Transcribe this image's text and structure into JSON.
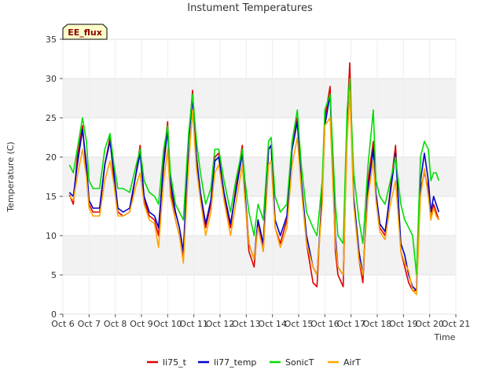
{
  "chart_data": {
    "type": "line",
    "title": "Instument Temperatures",
    "xlabel": "Time",
    "ylabel": "Temperature (C)",
    "badge": "EE_flux",
    "xlim": [
      6,
      21
    ],
    "ylim": [
      0,
      35
    ],
    "yticks": [
      0,
      5,
      10,
      15,
      20,
      25,
      30,
      35
    ],
    "xticks": [
      {
        "v": 6,
        "label": "Oct 6"
      },
      {
        "v": 7,
        "label": "Oct 7"
      },
      {
        "v": 8,
        "label": "Oct 8"
      },
      {
        "v": 9,
        "label": "Oct 9"
      },
      {
        "v": 10,
        "label": "Oct 10"
      },
      {
        "v": 11,
        "label": "Oct 11"
      },
      {
        "v": 12,
        "label": "Oct 12"
      },
      {
        "v": 13,
        "label": "Oct 13"
      },
      {
        "v": 14,
        "label": "Oct 14"
      },
      {
        "v": 15,
        "label": "Oct 15"
      },
      {
        "v": 16,
        "label": "Oct 16"
      },
      {
        "v": 17,
        "label": "Oct 17"
      },
      {
        "v": 18,
        "label": "Oct 18"
      },
      {
        "v": 19,
        "label": "Oct 19"
      },
      {
        "v": 20,
        "label": "Oct 20"
      },
      {
        "v": 21,
        "label": "Oct 21"
      }
    ],
    "legend_position": "bottom",
    "series": [
      {
        "name": "li75_t",
        "color": "#e00000",
        "x": [
          6.25,
          6.4,
          6.55,
          6.75,
          6.9,
          7.0,
          7.15,
          7.4,
          7.6,
          7.8,
          7.95,
          8.1,
          8.3,
          8.55,
          8.8,
          8.95,
          9.1,
          9.3,
          9.5,
          9.65,
          9.85,
          10.0,
          10.1,
          10.3,
          10.45,
          10.6,
          10.8,
          10.95,
          11.1,
          11.25,
          11.45,
          11.65,
          11.8,
          11.95,
          12.15,
          12.4,
          12.6,
          12.85,
          12.95,
          13.1,
          13.3,
          13.45,
          13.65,
          13.85,
          13.95,
          14.1,
          14.3,
          14.55,
          14.75,
          14.95,
          15.1,
          15.3,
          15.55,
          15.7,
          15.9,
          16.0,
          16.2,
          16.4,
          16.5,
          16.7,
          16.85,
          16.95,
          17.1,
          17.3,
          17.45,
          17.65,
          17.85,
          17.95,
          18.1,
          18.3,
          18.5,
          18.7,
          18.9,
          19.05,
          19.2,
          19.35,
          19.5,
          19.65,
          19.8,
          19.95,
          20.05,
          20.15,
          20.25,
          20.35
        ],
        "y": [
          15.2,
          14,
          20,
          24,
          18,
          14,
          13,
          13,
          19,
          22.5,
          17,
          13,
          12.5,
          13,
          18,
          21.5,
          14.5,
          12.5,
          12,
          10,
          20,
          24.5,
          16,
          12,
          10,
          7,
          22,
          28.5,
          20,
          15,
          11,
          14,
          20,
          20.5,
          15,
          11,
          16,
          21.5,
          15,
          8,
          6,
          12,
          8,
          21,
          21.5,
          11,
          9,
          12,
          22,
          25,
          17,
          9,
          4,
          3.5,
          16,
          25,
          29,
          8,
          5,
          3.5,
          25,
          32,
          15,
          7,
          4,
          17,
          22,
          15,
          11,
          10,
          16,
          21.5,
          8,
          6,
          4,
          3,
          3,
          16,
          18,
          16,
          12,
          14,
          13,
          12
        ]
      },
      {
        "name": "li77_temp",
        "color": "#0000cc",
        "x": [
          6.25,
          6.4,
          6.55,
          6.75,
          6.9,
          7.0,
          7.15,
          7.4,
          7.6,
          7.8,
          7.95,
          8.1,
          8.3,
          8.55,
          8.8,
          8.95,
          9.1,
          9.3,
          9.5,
          9.65,
          9.85,
          10.0,
          10.1,
          10.3,
          10.45,
          10.6,
          10.8,
          10.95,
          11.1,
          11.25,
          11.45,
          11.65,
          11.8,
          11.95,
          12.15,
          12.4,
          12.6,
          12.85,
          12.95,
          13.1,
          13.3,
          13.45,
          13.65,
          13.85,
          13.95,
          14.1,
          14.3,
          14.55,
          14.75,
          14.95,
          15.1,
          15.3,
          15.55,
          15.7,
          15.9,
          16.0,
          16.2,
          16.4,
          16.5,
          16.7,
          16.85,
          16.95,
          17.1,
          17.3,
          17.45,
          17.65,
          17.85,
          17.95,
          18.1,
          18.3,
          18.5,
          18.7,
          18.9,
          19.05,
          19.2,
          19.35,
          19.5,
          19.65,
          19.8,
          19.95,
          20.05,
          20.15,
          20.25,
          20.35
        ],
        "y": [
          15.5,
          15,
          19,
          23.5,
          19,
          14.5,
          13.5,
          13.5,
          19,
          22,
          18,
          13.5,
          13,
          13.5,
          18,
          20.5,
          15,
          13,
          12.5,
          11,
          19,
          23.5,
          17,
          13,
          11,
          8,
          22,
          27.5,
          20,
          15.5,
          11.5,
          14.5,
          19.5,
          20,
          15.5,
          11.5,
          15.5,
          20.5,
          15.5,
          9,
          7,
          12,
          9,
          21,
          21.5,
          12,
          10,
          12.5,
          21,
          24.5,
          17,
          10,
          6,
          5,
          15,
          24,
          28,
          10,
          6,
          5,
          24,
          29.5,
          15,
          8,
          5,
          16,
          21,
          15.5,
          11.5,
          10.5,
          15.5,
          20.5,
          9,
          7.5,
          5,
          3.5,
          3,
          17,
          20.5,
          17,
          13,
          15,
          14,
          13
        ]
      },
      {
        "name": "SonicT",
        "color": "#00dd00",
        "x": [
          6.25,
          6.4,
          6.55,
          6.75,
          6.9,
          7.0,
          7.15,
          7.4,
          7.6,
          7.8,
          7.95,
          8.1,
          8.3,
          8.55,
          8.8,
          8.95,
          9.1,
          9.3,
          9.5,
          9.65,
          9.85,
          10.0,
          10.1,
          10.3,
          10.45,
          10.6,
          10.8,
          10.95,
          11.1,
          11.25,
          11.45,
          11.65,
          11.8,
          11.95,
          12.15,
          12.4,
          12.6,
          12.85,
          12.95,
          13.1,
          13.3,
          13.45,
          13.65,
          13.85,
          13.95,
          14.1,
          14.3,
          14.55,
          14.75,
          14.95,
          15.1,
          15.3,
          15.55,
          15.7,
          15.9,
          16.0,
          16.2,
          16.4,
          16.5,
          16.7,
          16.85,
          16.95,
          17.1,
          17.3,
          17.45,
          17.65,
          17.85,
          17.95,
          18.1,
          18.3,
          18.5,
          18.7,
          18.9,
          19.05,
          19.2,
          19.35,
          19.5,
          19.65,
          19.8,
          19.95,
          20.05,
          20.15,
          20.25,
          20.35
        ],
        "y": [
          19,
          18,
          21,
          25,
          22,
          17,
          16,
          16,
          21,
          23,
          19,
          16,
          16,
          15.5,
          19,
          21,
          17,
          15.5,
          15,
          14,
          21,
          24,
          18,
          14,
          13,
          12,
          23,
          28,
          22,
          18,
          14,
          16,
          21,
          21,
          17,
          13,
          17,
          21,
          17,
          13,
          10,
          14,
          12,
          22,
          22.5,
          15,
          13,
          14,
          22,
          26,
          19,
          13,
          11,
          10,
          17,
          26,
          28,
          14,
          10,
          9,
          26,
          30,
          18,
          12,
          9,
          19,
          26,
          17,
          15,
          14,
          17,
          20,
          14,
          12,
          11,
          10,
          5,
          20,
          22,
          21,
          17,
          18,
          18,
          17
        ]
      },
      {
        "name": "AirT",
        "color": "#ffa500",
        "x": [
          6.25,
          6.4,
          6.55,
          6.75,
          6.9,
          7.0,
          7.15,
          7.4,
          7.6,
          7.8,
          7.95,
          8.1,
          8.3,
          8.55,
          8.8,
          8.95,
          9.1,
          9.3,
          9.5,
          9.65,
          9.85,
          10.0,
          10.1,
          10.3,
          10.45,
          10.6,
          10.8,
          10.95,
          11.1,
          11.25,
          11.45,
          11.65,
          11.8,
          11.95,
          12.15,
          12.4,
          12.6,
          12.85,
          12.95,
          13.1,
          13.3,
          13.45,
          13.65,
          13.85,
          13.95,
          14.1,
          14.3,
          14.55,
          14.75,
          14.95,
          15.1,
          15.3,
          15.55,
          15.7,
          15.9,
          16.0,
          16.2,
          16.4,
          16.5,
          16.7,
          16.85,
          16.95,
          17.1,
          17.3,
          17.45,
          17.65,
          17.85,
          17.95,
          18.1,
          18.3,
          18.5,
          18.7,
          18.9,
          19.05,
          19.2,
          19.35,
          19.5,
          19.65,
          19.8,
          19.95,
          20.05,
          20.15,
          20.25,
          20.35
        ],
        "y": [
          15,
          14.5,
          17.5,
          21,
          17.5,
          13.5,
          12.5,
          12.5,
          17,
          19.5,
          16.5,
          12.5,
          12.5,
          13,
          16.5,
          18,
          14,
          12,
          11.5,
          8.5,
          17,
          21,
          15,
          12,
          10,
          6.5,
          19,
          26,
          18.5,
          14.5,
          10,
          13,
          18,
          19,
          14.5,
          10,
          14,
          19,
          14.5,
          9,
          7,
          11,
          8,
          19,
          19.5,
          11,
          8.5,
          11,
          19,
          22.5,
          16,
          9,
          6,
          5,
          14,
          24,
          25,
          9,
          6,
          5,
          22,
          28.5,
          14,
          7,
          5,
          15,
          19.5,
          14.5,
          10.5,
          9.5,
          14,
          17,
          8,
          6.5,
          5.5,
          3,
          2.5,
          15,
          18.5,
          15,
          12,
          13.5,
          12.5,
          12
        ]
      }
    ]
  }
}
